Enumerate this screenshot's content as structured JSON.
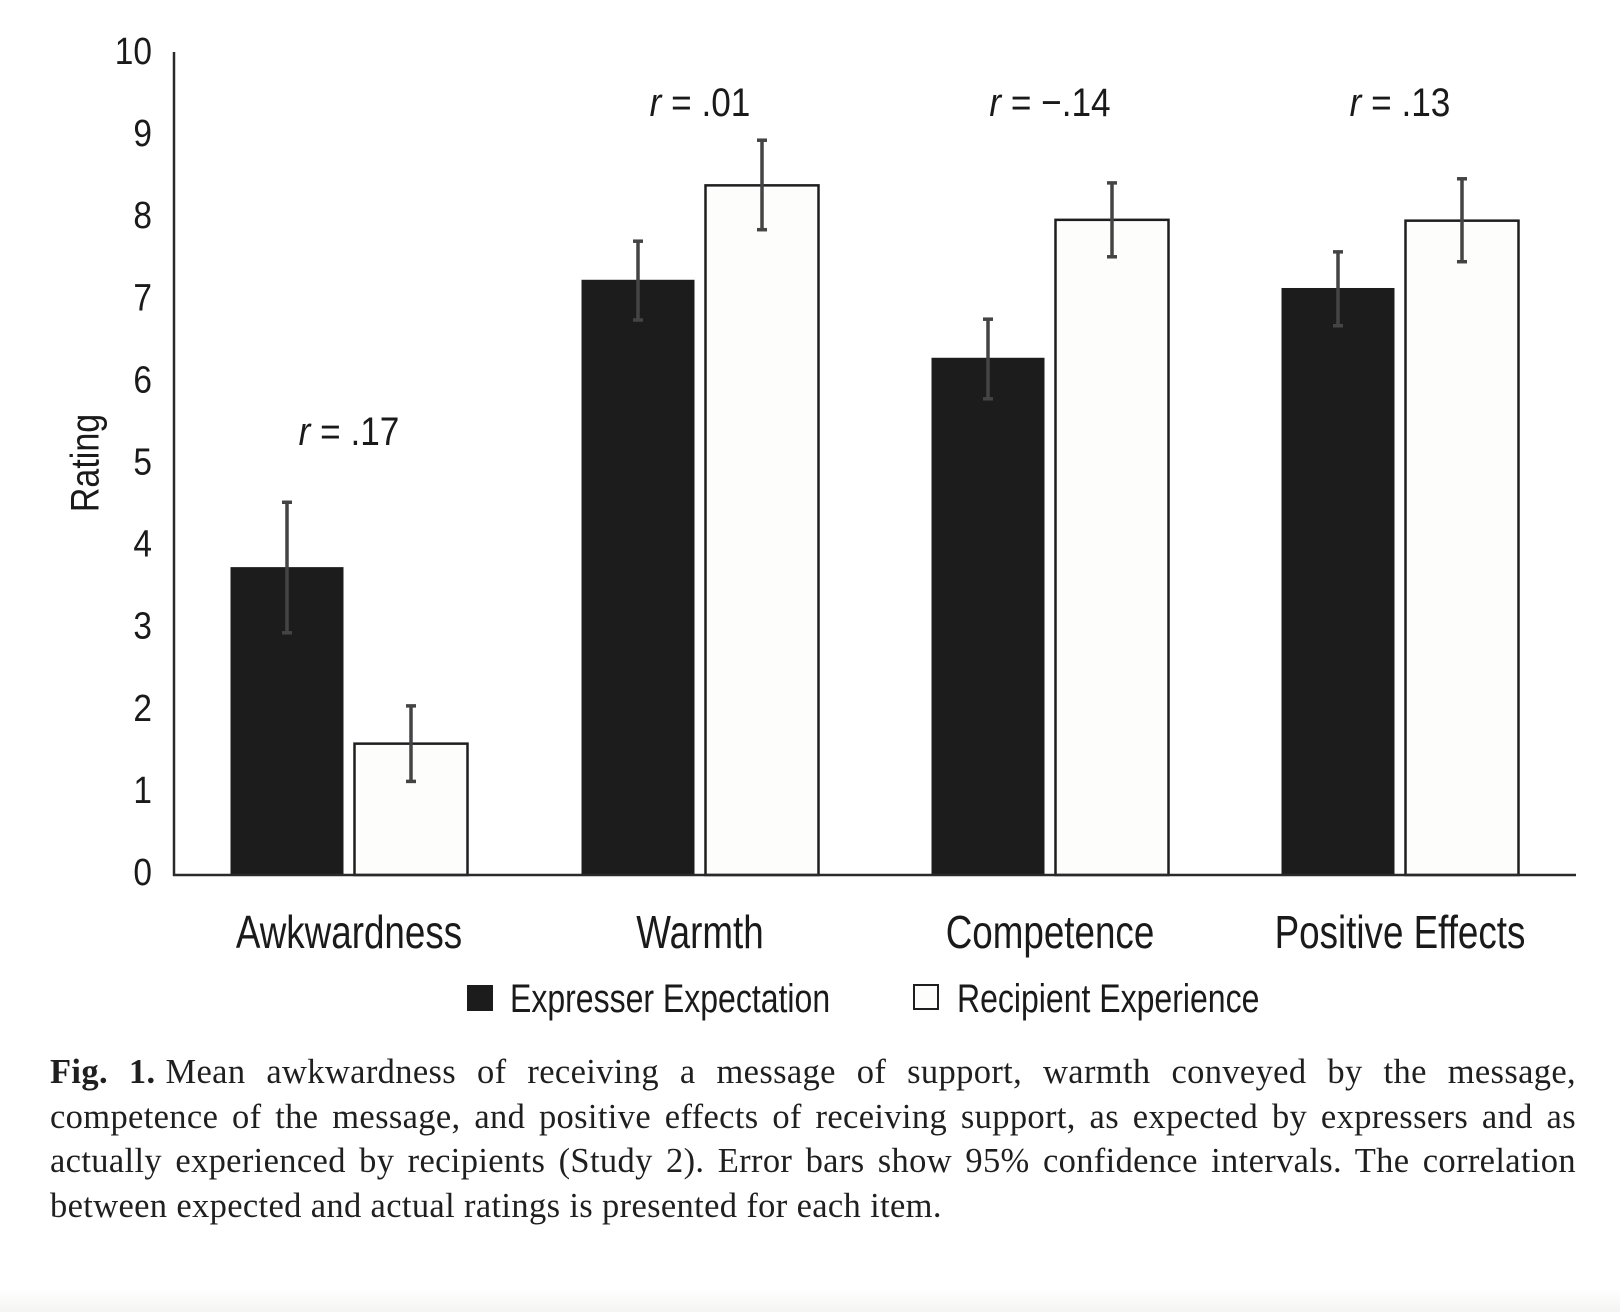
{
  "chart_data": {
    "type": "bar",
    "title": "",
    "xlabel": "",
    "ylabel": "Rating",
    "ylim": [
      0,
      10
    ],
    "yticks": [
      0,
      1,
      2,
      3,
      4,
      5,
      6,
      7,
      8,
      9,
      10
    ],
    "grid": false,
    "legend_position": "bottom-center",
    "categories": [
      "Awkwardness",
      "Warmth",
      "Competence",
      "Positive Effects"
    ],
    "series": [
      {
        "name": "Expresser Expectation",
        "color": "#1c1c1c",
        "values": [
          3.75,
          7.25,
          6.3,
          7.15
        ],
        "ci_low": [
          2.95,
          6.76,
          5.8,
          6.69
        ],
        "ci_high": [
          4.54,
          7.72,
          6.77,
          7.59
        ]
      },
      {
        "name": "Recipient Experience",
        "color": "#fdfdfb",
        "values": [
          1.6,
          8.4,
          7.98,
          7.97
        ],
        "ci_low": [
          1.14,
          7.86,
          7.53,
          7.47
        ],
        "ci_high": [
          2.06,
          8.95,
          8.43,
          8.48
        ]
      }
    ],
    "annotations": [
      {
        "category": "Awkwardness",
        "var": "r",
        "text": " = .17"
      },
      {
        "category": "Warmth",
        "var": "r",
        "text": " = .01"
      },
      {
        "category": "Competence",
        "var": "r",
        "text": " = −.14"
      },
      {
        "category": "Positive Effects",
        "var": "r",
        "text": " = .13"
      }
    ]
  },
  "caption": {
    "label": "Fig. 1.",
    "text": "Mean awkwardness of receiving a message of support, warmth conveyed by the message, competence of the message, and positive effects of receiving support, as expected by expressers and as actually experienced by recipients (Study 2). Error bars show 95% confidence intervals. The correlation between expected and actual ratings is presented for each item."
  },
  "colors": {
    "ink": "#1a1a1a",
    "error_bar": "#444444",
    "bar_outline": "#1e1e1e"
  }
}
